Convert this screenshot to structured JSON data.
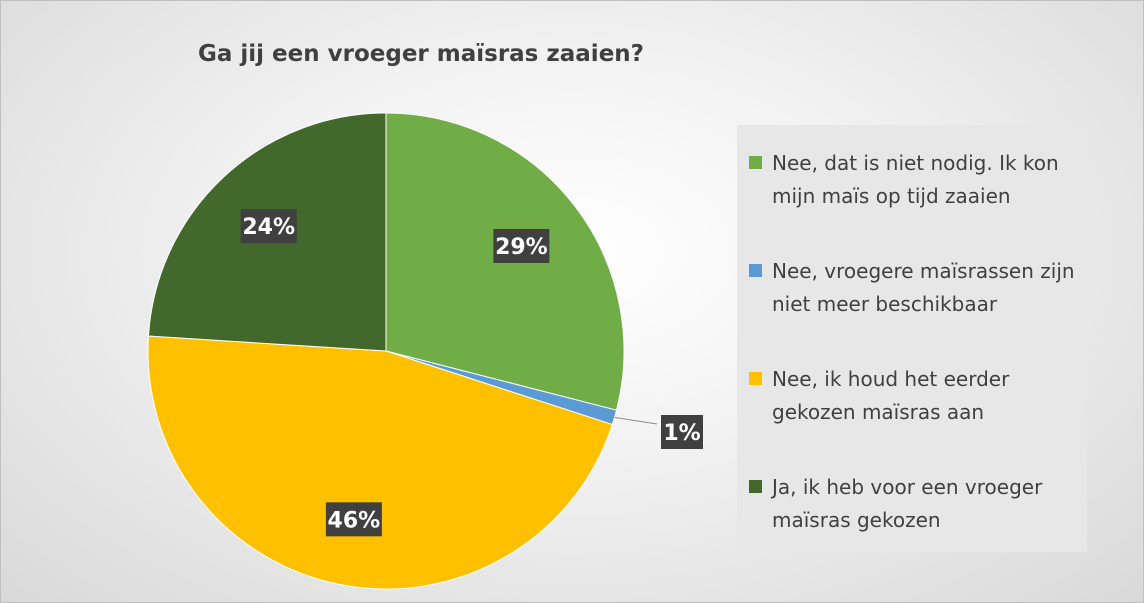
{
  "chart_data": {
    "type": "pie",
    "title": "Ga jij een vroeger maïsras zaaien?",
    "slices": [
      {
        "label": "Nee, dat is niet nodig. Ik kon mijn maïs op tijd zaaien",
        "value": 29,
        "value_label": "29%",
        "color": "#70ad47"
      },
      {
        "label": "Nee, vroegere maïsrassen zijn niet meer beschikbaar",
        "value": 1,
        "value_label": "1%",
        "color": "#5b9bd5"
      },
      {
        "label": "Nee, ik houd het eerder gekozen maïsras aan",
        "value": 46,
        "value_label": "46%",
        "color": "#ffc000"
      },
      {
        "label": "Ja, ik heb voor een vroeger maïsras gekozen",
        "value": 24,
        "value_label": "24%",
        "color": "#43682b"
      }
    ],
    "data_label_style": {
      "background": "#404040",
      "text_color": "#ffffff"
    },
    "legend_position": "right"
  }
}
